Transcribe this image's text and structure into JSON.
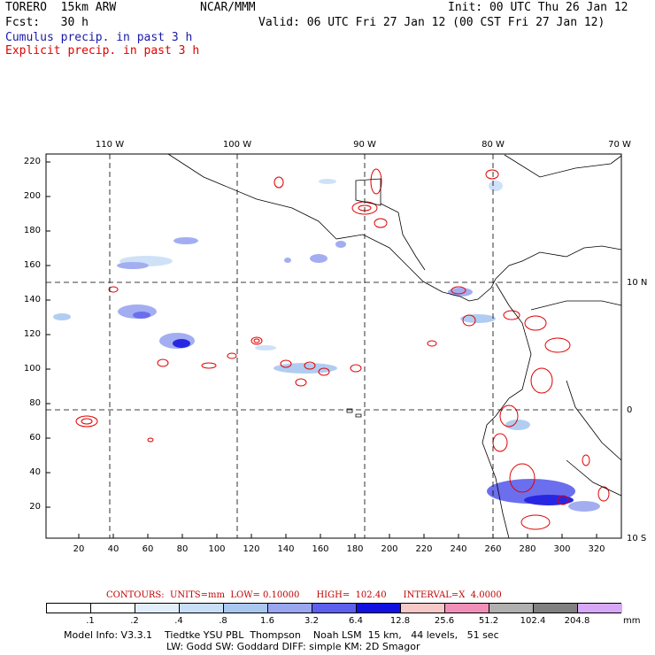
{
  "header": {
    "model": "TORERO  15km ARW",
    "org": "NCAR/MMM",
    "init": "Init: 00 UTC Thu 26 Jan 12",
    "fcst": "Fcst:   30 h",
    "valid": "Valid: 06 UTC Fri 27 Jan 12 (00 CST Fri 27 Jan 12)",
    "cumulus_label": "Cumulus precip. in past 3 h",
    "explicit_label": "Explicit precip. in past 3 h",
    "cumulus_color": "#1a1aa8",
    "explicit_color": "#e00000"
  },
  "map": {
    "lon_labels": [
      "110 W",
      "100 W",
      "90 W",
      "80 W",
      "70 W"
    ],
    "lat_labels": [
      "10 N",
      "0",
      "10 S"
    ],
    "y_ticks": [
      "220",
      "200",
      "180",
      "160",
      "140",
      "120",
      "100",
      "80",
      "60",
      "40",
      "20"
    ],
    "x_ticks": [
      "20",
      "40",
      "60",
      "80",
      "100",
      "120",
      "140",
      "160",
      "180",
      "200",
      "220",
      "240",
      "260",
      "280",
      "300",
      "320"
    ]
  },
  "contours_info": {
    "text": "CONTOURS:  UNITS=mm  LOW= 0.10000      HIGH=  102.40      INTERVAL=X  4.0000",
    "color": "#c00000"
  },
  "colorbar": {
    "labels": [
      ".1",
      ".2",
      ".4",
      ".8",
      "1.6",
      "3.2",
      "6.4",
      "12.8",
      "25.6",
      "51.2",
      "102.4",
      "204.8"
    ],
    "unit": "mm",
    "colors": [
      "#ffffff",
      "#ffffff",
      "#e3eefb",
      "#c9def7",
      "#a8c8f0",
      "#9aa6f0",
      "#5c60ec",
      "#1010e0",
      "#f7c8c8",
      "#f090b8",
      "#b0b0b0",
      "#808080",
      "#d8a8f8"
    ]
  },
  "footer": {
    "line1": "Model Info: V3.3.1    Tiedtke YSU PBL  Thompson    Noah LSM  15 km,   44 levels,   51 sec",
    "line2": "LW: Godd SW: Goddard DIFF: simple KM: 2D Smagor"
  }
}
